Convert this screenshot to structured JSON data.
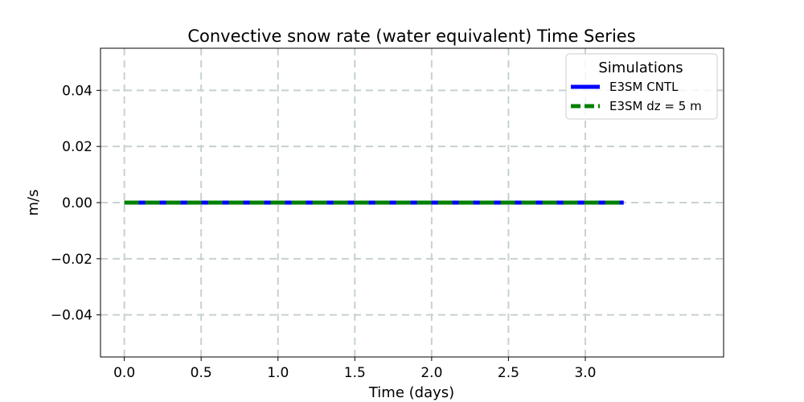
{
  "chart_data": {
    "type": "line",
    "title": "Convective snow rate (water equivalent) Time Series",
    "xlabel": "Time (days)",
    "ylabel": "m/s",
    "xlim": [
      -0.155,
      3.9
    ],
    "ylim": [
      -0.055,
      0.055
    ],
    "xticks": [
      0.0,
      0.5,
      1.0,
      1.5,
      2.0,
      2.5,
      3.0
    ],
    "xtick_labels": [
      "0.0",
      "0.5",
      "1.0",
      "1.5",
      "2.0",
      "2.5",
      "3.0"
    ],
    "yticks": [
      -0.04,
      -0.02,
      0.0,
      0.02,
      0.04
    ],
    "ytick_labels": [
      "−0.04",
      "−0.02",
      "0.00",
      "0.02",
      "0.04"
    ],
    "grid": true,
    "legend": {
      "title": "Simulations",
      "position": "upper right"
    },
    "series": [
      {
        "name": "E3SM CNTL",
        "color": "#0000ff",
        "style": "solid",
        "x": [
          0.0,
          3.25
        ],
        "y": [
          0.0,
          0.0
        ]
      },
      {
        "name": "E3SM dz = 5 m",
        "color": "#008000",
        "style": "dashed",
        "x": [
          0.0,
          3.25
        ],
        "y": [
          0.0,
          0.0
        ]
      }
    ]
  }
}
